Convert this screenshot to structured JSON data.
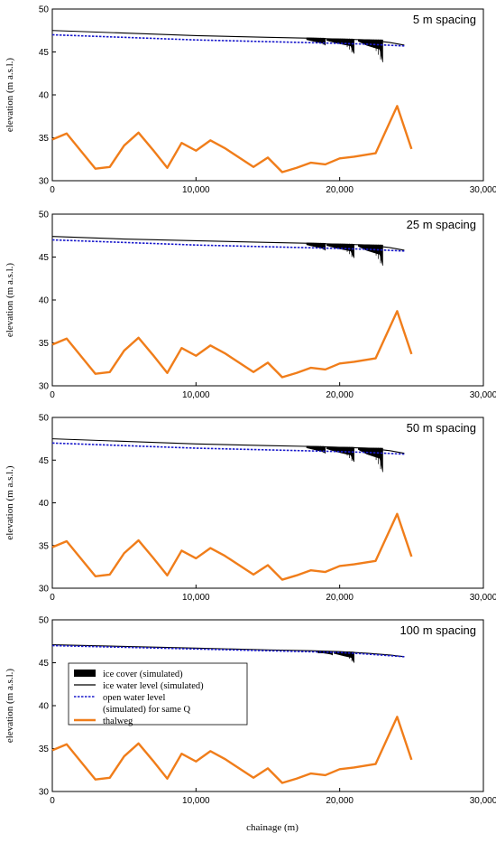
{
  "xlabel": "chainage (m)",
  "colors": {
    "ice_cover": "#000000",
    "ice_water": "#000000",
    "open_water": "#1a1acc",
    "thalweg": "#f07d1a"
  },
  "legend": {
    "placement": "lower-left of bottom panel",
    "entries": [
      {
        "key": "ice_cover",
        "text": "ice cover (simulated)"
      },
      {
        "key": "ice_water",
        "text": "ice water level (simulated)"
      },
      {
        "key": "open_water",
        "text": "open water level"
      },
      {
        "key": "open_water_cont",
        "text": "(simulated) for same Q"
      },
      {
        "key": "thalweg",
        "text": "thalweg"
      }
    ]
  },
  "chart_data": [
    {
      "type": "line",
      "title": "5 m spacing",
      "ylabel": "elevation (m a.s.l.)",
      "xlim": [
        0,
        30000
      ],
      "ylim": [
        30,
        50
      ],
      "xticks": [
        0,
        10000,
        20000,
        30000
      ],
      "xtick_labels": [
        "0",
        "10,000",
        "20,000",
        "30,000"
      ],
      "yticks": [
        30,
        35,
        40,
        45,
        50
      ],
      "series": [
        {
          "name": "ice water level (simulated)",
          "key": "ice_water",
          "x": [
            0,
            5000,
            10000,
            15000,
            18000,
            20000,
            22000,
            23500,
            24500
          ],
          "y": [
            47.5,
            47.2,
            46.9,
            46.7,
            46.6,
            46.5,
            46.4,
            46.1,
            45.8
          ]
        },
        {
          "name": "open water level (simulated) for same Q",
          "key": "open_water",
          "x": [
            0,
            5000,
            10000,
            15000,
            20000,
            22000,
            24500
          ],
          "y": [
            47.0,
            46.7,
            46.4,
            46.2,
            46.0,
            45.9,
            45.7
          ]
        },
        {
          "name": "thalweg",
          "key": "thalweg",
          "x": [
            0,
            1000,
            3000,
            4000,
            5000,
            6000,
            7000,
            8000,
            9000,
            10000,
            11000,
            12000,
            14000,
            15000,
            16000,
            17000,
            18000,
            19000,
            20000,
            21000,
            22500,
            24000,
            25000
          ],
          "y": [
            34.8,
            35.5,
            31.4,
            31.6,
            34.1,
            35.6,
            33.6,
            31.5,
            34.4,
            33.5,
            34.7,
            33.8,
            31.6,
            32.7,
            31.0,
            31.5,
            32.1,
            31.9,
            32.6,
            32.8,
            33.2,
            38.7,
            33.7
          ]
        }
      ],
      "ice_cover": [
        {
          "x0": 17700,
          "x1": 19000,
          "top": 46.65,
          "bottom": 46.0,
          "tip": 45.8
        },
        {
          "x0": 19100,
          "x1": 21000,
          "top": 46.55,
          "bottom": 45.7,
          "tip": 44.8
        },
        {
          "x0": 21300,
          "x1": 23000,
          "top": 46.45,
          "bottom": 45.3,
          "tip": 43.8
        }
      ]
    },
    {
      "type": "line",
      "title": "25 m spacing",
      "ylabel": "elevation (m a.s.l.)",
      "xlim": [
        0,
        30000
      ],
      "ylim": [
        30,
        50
      ],
      "xticks": [
        0,
        10000,
        20000,
        30000
      ],
      "xtick_labels": [
        "0",
        "10,000",
        "20,000",
        "30,000"
      ],
      "yticks": [
        30,
        35,
        40,
        45,
        50
      ],
      "series": [
        {
          "name": "ice water level (simulated)",
          "key": "ice_water",
          "x": [
            0,
            5000,
            10000,
            15000,
            18000,
            20000,
            22000,
            23500,
            24500
          ],
          "y": [
            47.4,
            47.1,
            46.9,
            46.7,
            46.6,
            46.5,
            46.4,
            46.1,
            45.8
          ]
        },
        {
          "name": "open water level (simulated) for same Q",
          "key": "open_water",
          "x": [
            0,
            5000,
            10000,
            15000,
            20000,
            22000,
            24500
          ],
          "y": [
            47.0,
            46.7,
            46.4,
            46.2,
            46.0,
            45.9,
            45.7
          ]
        },
        {
          "name": "thalweg",
          "key": "thalweg",
          "x": [
            0,
            1000,
            3000,
            4000,
            5000,
            6000,
            7000,
            8000,
            9000,
            10000,
            11000,
            12000,
            14000,
            15000,
            16000,
            17000,
            18000,
            19000,
            20000,
            21000,
            22500,
            24000,
            25000
          ],
          "y": [
            34.8,
            35.5,
            31.4,
            31.6,
            34.1,
            35.6,
            33.6,
            31.5,
            34.4,
            33.5,
            34.7,
            33.8,
            31.6,
            32.7,
            31.0,
            31.5,
            32.1,
            31.9,
            32.6,
            32.8,
            33.2,
            38.7,
            33.7
          ]
        }
      ],
      "ice_cover": [
        {
          "x0": 17700,
          "x1": 19000,
          "top": 46.65,
          "bottom": 46.0,
          "tip": 45.8
        },
        {
          "x0": 19100,
          "x1": 21000,
          "top": 46.55,
          "bottom": 45.7,
          "tip": 44.9
        },
        {
          "x0": 21300,
          "x1": 23000,
          "top": 46.45,
          "bottom": 45.3,
          "tip": 44.0
        }
      ]
    },
    {
      "type": "line",
      "title": "50 m spacing",
      "ylabel": "elevation (m a.s.l.)",
      "xlim": [
        0,
        30000
      ],
      "ylim": [
        30,
        50
      ],
      "xticks": [
        0,
        10000,
        20000,
        30000
      ],
      "xtick_labels": [
        "0",
        "10,000",
        "20,000",
        "30,000"
      ],
      "yticks": [
        30,
        35,
        40,
        45,
        50
      ],
      "series": [
        {
          "name": "ice water level (simulated)",
          "key": "ice_water",
          "x": [
            0,
            5000,
            10000,
            15000,
            18000,
            20000,
            22000,
            23500,
            24500
          ],
          "y": [
            47.5,
            47.2,
            46.9,
            46.7,
            46.6,
            46.5,
            46.4,
            46.1,
            45.8
          ]
        },
        {
          "name": "open water level (simulated) for same Q",
          "key": "open_water",
          "x": [
            0,
            5000,
            10000,
            15000,
            20000,
            22000,
            24500
          ],
          "y": [
            47.0,
            46.7,
            46.4,
            46.2,
            46.0,
            45.9,
            45.7
          ]
        },
        {
          "name": "thalweg",
          "key": "thalweg",
          "x": [
            0,
            1000,
            3000,
            4000,
            5000,
            6000,
            7000,
            8000,
            9000,
            10000,
            11000,
            12000,
            14000,
            15000,
            16000,
            17000,
            18000,
            19000,
            20000,
            21000,
            22500,
            24000,
            25000
          ],
          "y": [
            34.8,
            35.5,
            31.4,
            31.6,
            34.1,
            35.6,
            33.6,
            31.5,
            34.4,
            33.5,
            34.7,
            33.8,
            31.6,
            32.7,
            31.0,
            31.5,
            32.1,
            31.9,
            32.6,
            32.8,
            33.2,
            38.7,
            33.7
          ]
        }
      ],
      "ice_cover": [
        {
          "x0": 17700,
          "x1": 19000,
          "top": 46.65,
          "bottom": 46.0,
          "tip": 45.8
        },
        {
          "x0": 19100,
          "x1": 21000,
          "top": 46.55,
          "bottom": 45.6,
          "tip": 44.8
        },
        {
          "x0": 21300,
          "x1": 23000,
          "top": 46.45,
          "bottom": 45.2,
          "tip": 43.6
        }
      ]
    },
    {
      "type": "line",
      "title": "100 m spacing",
      "ylabel": "elevation (m a.s.l.)",
      "xlim": [
        0,
        30000
      ],
      "ylim": [
        30,
        50
      ],
      "xticks": [
        0,
        10000,
        20000,
        30000
      ],
      "xtick_labels": [
        "0",
        "10,000",
        "20,000",
        "30,000"
      ],
      "yticks": [
        30,
        35,
        40,
        45,
        50
      ],
      "series": [
        {
          "name": "ice water level (simulated)",
          "key": "ice_water",
          "x": [
            0,
            5000,
            10000,
            15000,
            18000,
            20000,
            22000,
            23500,
            24500
          ],
          "y": [
            47.1,
            46.9,
            46.7,
            46.5,
            46.4,
            46.3,
            46.1,
            45.9,
            45.7
          ]
        },
        {
          "name": "open water level (simulated) for same Q",
          "key": "open_water",
          "x": [
            0,
            5000,
            10000,
            15000,
            20000,
            22000,
            24500
          ],
          "y": [
            47.0,
            46.8,
            46.6,
            46.4,
            46.2,
            46.0,
            45.7
          ]
        },
        {
          "name": "thalweg",
          "key": "thalweg",
          "x": [
            0,
            1000,
            3000,
            4000,
            5000,
            6000,
            7000,
            8000,
            9000,
            10000,
            11000,
            12000,
            14000,
            15000,
            16000,
            17000,
            18000,
            19000,
            20000,
            21000,
            22500,
            24000,
            25000
          ],
          "y": [
            34.8,
            35.5,
            31.4,
            31.6,
            34.1,
            35.6,
            33.6,
            31.5,
            34.4,
            33.5,
            34.7,
            33.8,
            31.6,
            32.7,
            31.0,
            31.5,
            32.1,
            31.9,
            32.6,
            32.8,
            33.2,
            38.7,
            33.7
          ]
        }
      ],
      "ice_cover": [
        {
          "x0": 18500,
          "x1": 19500,
          "top": 46.35,
          "bottom": 46.0,
          "tip": 45.9
        },
        {
          "x0": 19600,
          "x1": 21000,
          "top": 46.3,
          "bottom": 45.6,
          "tip": 45.0
        }
      ]
    }
  ]
}
